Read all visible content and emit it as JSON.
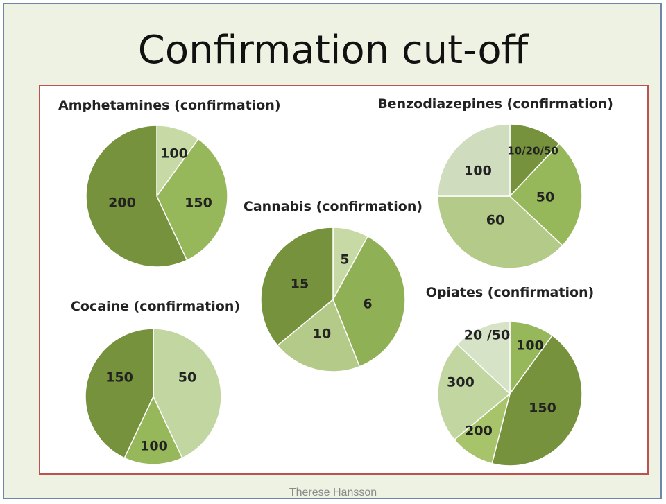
{
  "slide": {
    "title": "Confirmation cut-off",
    "footer": "Therese Hansson"
  },
  "chart_data": [
    {
      "type": "pie",
      "title": "Amphetamines (confirmation)",
      "categories": [
        "100",
        "150",
        "200"
      ],
      "values": [
        10,
        33,
        57
      ],
      "colors": [
        "#c7d9a4",
        "#97b85a",
        "#76923c"
      ]
    },
    {
      "type": "pie",
      "title": "Benzodiazepines (confirmation)",
      "categories": [
        "10/20/50",
        "50",
        "60",
        "100"
      ],
      "values": [
        12,
        25,
        38,
        25
      ],
      "colors": [
        "#76923c",
        "#97b85a",
        "#b3ca88",
        "#cfdcbd"
      ]
    },
    {
      "type": "pie",
      "title": "Cannabis (confirmation)",
      "categories": [
        "5",
        "6",
        "10",
        "15"
      ],
      "values": [
        8,
        36,
        20,
        36
      ],
      "colors": [
        "#c7d9a4",
        "#90b055",
        "#b3ca88",
        "#76923c"
      ]
    },
    {
      "type": "pie",
      "title": "Cocaine (confirmation)",
      "categories": [
        "50",
        "100",
        "150"
      ],
      "values": [
        43,
        14,
        43
      ],
      "colors": [
        "#c2d6a2",
        "#97b85a",
        "#76923c"
      ]
    },
    {
      "type": "pie",
      "title": "Opiates (confirmation)",
      "categories": [
        "100",
        "150",
        "200",
        "300",
        "20 /50"
      ],
      "values": [
        10,
        44,
        10,
        23,
        13
      ],
      "colors": [
        "#97b85a",
        "#76923c",
        "#a8c46a",
        "#c2d6a2",
        "#d6e3c7"
      ]
    }
  ]
}
